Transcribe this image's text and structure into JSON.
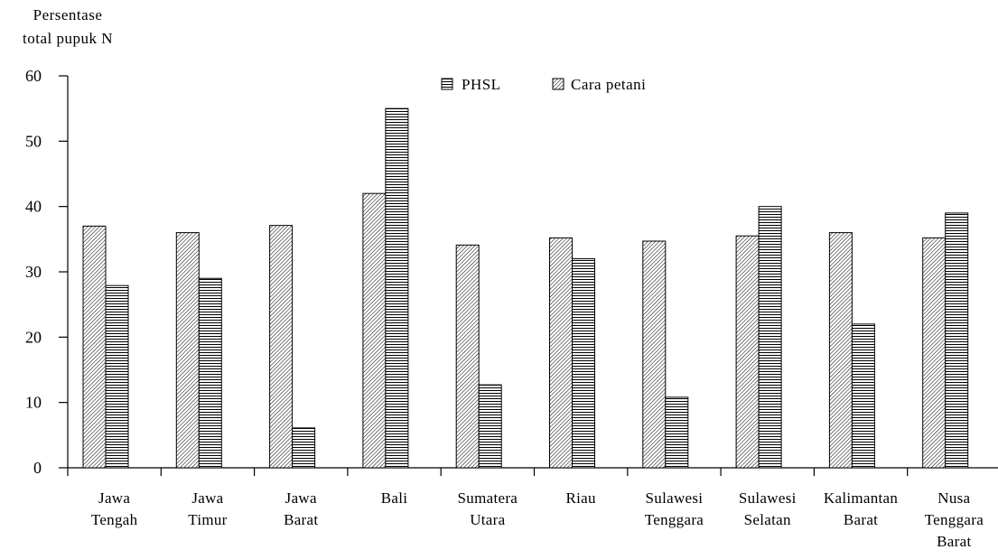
{
  "chart_data": {
    "type": "bar",
    "ylabel_lines": [
      "Persentase",
      "total pupuk N"
    ],
    "xlabel": "",
    "ylim": [
      0,
      60
    ],
    "yticks": [
      0,
      10,
      20,
      30,
      40,
      50,
      60
    ],
    "legend_position": "top-center",
    "categories": [
      [
        "Jawa",
        "Tengah"
      ],
      [
        "Jawa",
        "Timur"
      ],
      [
        "Jawa",
        "Barat"
      ],
      [
        "Bali"
      ],
      [
        "Sumatera",
        "Utara"
      ],
      [
        "Riau"
      ],
      [
        "Sulawesi",
        "Tenggara"
      ],
      [
        "Sulawesi",
        "Selatan"
      ],
      [
        "Kalimantan",
        "Barat"
      ],
      [
        "Nusa",
        "Tenggara",
        "Barat"
      ]
    ],
    "series": [
      {
        "name": "Cara petani",
        "pattern": "diagonal",
        "values": [
          37,
          36,
          37.1,
          42,
          34.1,
          35.2,
          34.7,
          35.5,
          36,
          35.2
        ]
      },
      {
        "name": "PHSL",
        "pattern": "horizontal",
        "values": [
          27.9,
          29,
          6.1,
          55,
          12.7,
          32,
          10.8,
          40,
          22,
          39
        ]
      }
    ],
    "legend_order": [
      "PHSL",
      "Cara petani"
    ]
  }
}
